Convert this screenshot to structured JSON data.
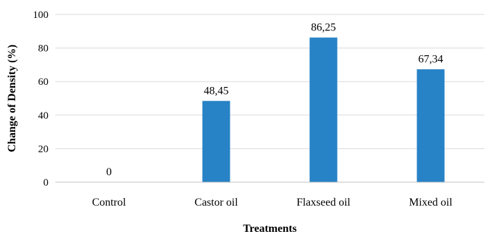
{
  "chart_data": {
    "type": "bar",
    "categories": [
      "Control",
      "Castor oil",
      "Flaxseed oil",
      "Mixed oil"
    ],
    "values": [
      0,
      48.45,
      86.25,
      67.34
    ],
    "data_labels": [
      "0",
      "48,45",
      "86,25",
      "67,34"
    ],
    "xlabel": "Treatments",
    "ylabel": "Change of Density (%)",
    "ylim": [
      0,
      100
    ],
    "yticks": [
      0,
      20,
      40,
      60,
      80,
      100
    ],
    "grid": true,
    "bar_color": "#2782c6"
  }
}
